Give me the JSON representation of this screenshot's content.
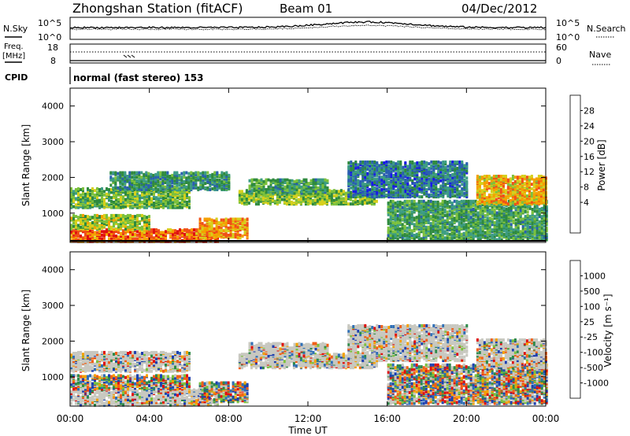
{
  "header": {
    "station": "Zhongshan Station (fitACF)",
    "beam": "Beam 01",
    "date": "04/Dec/2012"
  },
  "top_panels": {
    "n_sky_label": "N.Sky",
    "n_search_label": "N.Search",
    "n_left_ticks": [
      "10^5",
      "10^0"
    ],
    "n_right_ticks": [
      "10^5",
      "10^0"
    ],
    "freq_label_1": "Freq.",
    "freq_label_2": "[MHz]",
    "freq_ticks": [
      "18",
      "8"
    ],
    "nave_ticks": [
      "60",
      "0"
    ],
    "nave_label": "Nave",
    "cpid_label": "CPID",
    "cpid_text": "normal (fast stereo) 153"
  },
  "power_colorbar": {
    "title": "Power [dB]",
    "ticks": [
      "28",
      "24",
      "20",
      "16",
      "12",
      "8",
      "4"
    ],
    "colors": [
      "#e01010",
      "#f05018",
      "#f5a000",
      "#d6d01c",
      "#7cc13d",
      "#2f8a3e",
      "#3c9c84",
      "#2a5fb0",
      "#1818e8"
    ]
  },
  "velocity_colorbar": {
    "title": "Velocity [m s⁻¹]",
    "ticks": [
      "1000",
      "500",
      "100",
      "25",
      "-25",
      "-100",
      "-500",
      "-1000"
    ],
    "colors": [
      "#1e3fb0",
      "#2f6fb7",
      "#2e8a4a",
      "#7cc13d",
      "#c8c8c0",
      "#c8c8c0",
      "#f5a000",
      "#f06018",
      "#e01010"
    ]
  },
  "chart_data": [
    {
      "type": "heatmap",
      "title": "Power",
      "ylabel": "Slant Range [km]",
      "xlabel": "",
      "x_ticks": [
        "00:00",
        "04:00",
        "08:00",
        "12:00",
        "16:00",
        "20:00",
        "00:00"
      ],
      "y_ticks": [
        1000,
        2000,
        3000,
        4000
      ],
      "ylim": [
        180,
        4500
      ],
      "xlim_hours": [
        0,
        24
      ],
      "scatter_bands": [
        {
          "t0": 0.0,
          "t1": 7.5,
          "r0": 250,
          "r1": 600,
          "level": 0.85
        },
        {
          "t0": 0.0,
          "t1": 4.0,
          "r0": 600,
          "r1": 1000,
          "level": 0.55
        },
        {
          "t0": 0.0,
          "t1": 6.0,
          "r0": 1200,
          "r1": 1750,
          "level": 0.45
        },
        {
          "t0": 2.0,
          "t1": 8.0,
          "r0": 1700,
          "r1": 2200,
          "level": 0.3
        },
        {
          "t0": 6.5,
          "t1": 9.0,
          "r0": 350,
          "r1": 900,
          "level": 0.75
        },
        {
          "t0": 8.5,
          "t1": 15.5,
          "r0": 1300,
          "r1": 1700,
          "level": 0.5
        },
        {
          "t0": 9.0,
          "t1": 13.0,
          "r0": 1600,
          "r1": 2000,
          "level": 0.35
        },
        {
          "t0": 16.0,
          "t1": 24.0,
          "r0": 300,
          "r1": 1400,
          "level": 0.35
        },
        {
          "t0": 20.5,
          "t1": 24.0,
          "r0": 1300,
          "r1": 2100,
          "level": 0.7
        },
        {
          "t0": 14.0,
          "t1": 20.0,
          "r0": 1500,
          "r1": 2500,
          "level": 0.2
        }
      ]
    },
    {
      "type": "heatmap",
      "title": "Velocity",
      "ylabel": "Slant Range [km]",
      "xlabel": "Time UT",
      "x_ticks": [
        "00:00",
        "04:00",
        "08:00",
        "12:00",
        "16:00",
        "20:00",
        "00:00"
      ],
      "y_ticks": [
        1000,
        2000,
        3000,
        4000
      ],
      "ylim": [
        180,
        4500
      ],
      "xlim_hours": [
        0,
        24
      ],
      "scatter_bands": [
        {
          "t0": 0.0,
          "t1": 7.5,
          "r0": 250,
          "r1": 700,
          "level": 0.7
        },
        {
          "t0": 0.0,
          "t1": 6.0,
          "r0": 700,
          "r1": 1100,
          "level": 0.4
        },
        {
          "t0": 0.0,
          "t1": 6.0,
          "r0": 1200,
          "r1": 1750,
          "level": 0.5
        },
        {
          "t0": 6.5,
          "t1": 9.0,
          "r0": 350,
          "r1": 900,
          "level": 0.3
        },
        {
          "t0": 8.5,
          "t1": 15.5,
          "r0": 1300,
          "r1": 1700,
          "level": 0.5
        },
        {
          "t0": 9.0,
          "t1": 13.0,
          "r0": 1600,
          "r1": 2000,
          "level": 0.5
        },
        {
          "t0": 16.0,
          "t1": 24.0,
          "r0": 300,
          "r1": 1400,
          "level": 0.35
        },
        {
          "t0": 20.5,
          "t1": 24.0,
          "r0": 1300,
          "r1": 2100,
          "level": 0.5
        },
        {
          "t0": 14.0,
          "t1": 20.0,
          "r0": 1500,
          "r1": 2500,
          "level": 0.6
        }
      ]
    }
  ]
}
